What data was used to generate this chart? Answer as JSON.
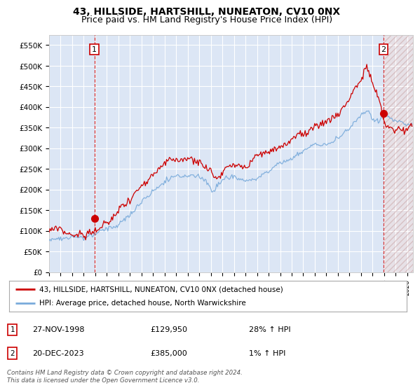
{
  "title": "43, HILLSIDE, HARTSHILL, NUNEATON, CV10 0NX",
  "subtitle": "Price paid vs. HM Land Registry's House Price Index (HPI)",
  "ylim": [
    0,
    575000
  ],
  "yticks": [
    0,
    50000,
    100000,
    150000,
    200000,
    250000,
    300000,
    350000,
    400000,
    450000,
    500000,
    550000
  ],
  "ytick_labels": [
    "£0",
    "£50K",
    "£100K",
    "£150K",
    "£200K",
    "£250K",
    "£300K",
    "£350K",
    "£400K",
    "£450K",
    "£500K",
    "£550K"
  ],
  "xlim_start": 1995.0,
  "xlim_end": 2026.5,
  "xticks": [
    1995,
    1996,
    1997,
    1998,
    1999,
    2000,
    2001,
    2002,
    2003,
    2004,
    2005,
    2006,
    2007,
    2008,
    2009,
    2010,
    2011,
    2012,
    2013,
    2014,
    2015,
    2016,
    2017,
    2018,
    2019,
    2020,
    2021,
    2022,
    2023,
    2024,
    2025,
    2026
  ],
  "red_line_color": "#cc0000",
  "blue_line_color": "#7aabdb",
  "plot_bg_color": "#dce6f5",
  "grid_color": "#ffffff",
  "sale1_x": 1998.917,
  "sale1_y": 129950,
  "sale2_x": 2023.958,
  "sale2_y": 385000,
  "sale1_date": "27-NOV-1998",
  "sale1_price": "£129,950",
  "sale1_hpi": "28% ↑ HPI",
  "sale2_date": "20-DEC-2023",
  "sale2_price": "£385,000",
  "sale2_hpi": "1% ↑ HPI",
  "legend_line1": "43, HILLSIDE, HARTSHILL, NUNEATON, CV10 0NX (detached house)",
  "legend_line2": "HPI: Average price, detached house, North Warwickshire",
  "footer": "Contains HM Land Registry data © Crown copyright and database right 2024.\nThis data is licensed under the Open Government Licence v3.0.",
  "title_fontsize": 10,
  "subtitle_fontsize": 9,
  "hatch_start": 2024.0
}
